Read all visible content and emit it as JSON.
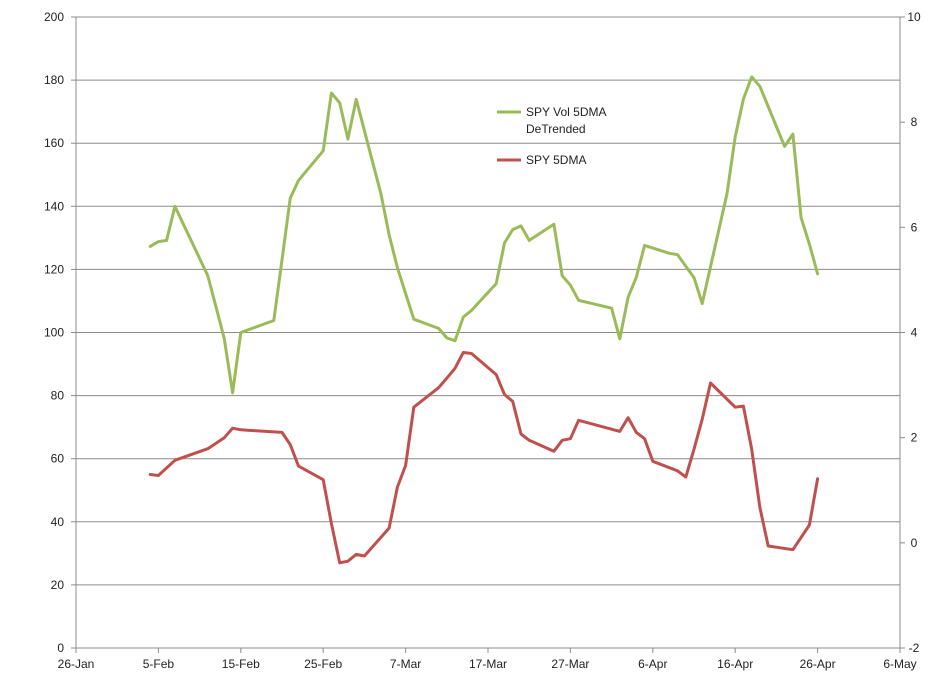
{
  "chart_data": {
    "type": "line",
    "title": "",
    "xlabel": "",
    "ylabel": "",
    "x_axis": {
      "min": "2013-01-26",
      "max": "2013-05-06",
      "ticks": [
        {
          "date": "2013-01-26",
          "label": "26-Jan"
        },
        {
          "date": "2013-02-05",
          "label": "5-Feb"
        },
        {
          "date": "2013-02-15",
          "label": "15-Feb"
        },
        {
          "date": "2013-02-25",
          "label": "25-Feb"
        },
        {
          "date": "2013-03-07",
          "label": "7-Mar"
        },
        {
          "date": "2013-03-17",
          "label": "17-Mar"
        },
        {
          "date": "2013-03-27",
          "label": "27-Mar"
        },
        {
          "date": "2013-04-06",
          "label": "6-Apr"
        },
        {
          "date": "2013-04-16",
          "label": "16-Apr"
        },
        {
          "date": "2013-04-26",
          "label": "26-Apr"
        },
        {
          "date": "2013-05-06",
          "label": "6-May"
        }
      ]
    },
    "y_axis_left": {
      "min": 0,
      "max": 200,
      "ticks": [
        "0",
        "20",
        "40",
        "60",
        "80",
        "100",
        "120",
        "140",
        "160",
        "180",
        "200"
      ]
    },
    "y_axis_right": {
      "min": -2,
      "max": 10,
      "ticks": [
        "-2",
        "0",
        "2",
        "4",
        "6",
        "8",
        "10"
      ]
    },
    "grid": "horizontal",
    "legend_position": "top-center",
    "series": [
      {
        "name": "SPY Vol 5DMA DeTrended",
        "name_lines": [
          "SPY Vol 5DMA",
          "DeTrended"
        ],
        "axis": "left",
        "color": "#9bbb59",
        "points": [
          [
            "2013-02-04",
            127.3
          ],
          [
            "2013-02-05",
            128.8
          ],
          [
            "2013-02-06",
            129.2
          ],
          [
            "2013-02-07",
            140.0
          ],
          [
            "2013-02-11",
            118.0
          ],
          [
            "2013-02-12",
            108.0
          ],
          [
            "2013-02-13",
            98.0
          ],
          [
            "2013-02-14",
            80.9
          ],
          [
            "2013-02-15",
            100.0
          ],
          [
            "2013-02-19",
            103.8
          ],
          [
            "2013-02-20",
            123.0
          ],
          [
            "2013-02-21",
            142.5
          ],
          [
            "2013-02-22",
            148.2
          ],
          [
            "2013-02-25",
            157.6
          ],
          [
            "2013-02-26",
            175.9
          ],
          [
            "2013-02-27",
            172.8
          ],
          [
            "2013-02-28",
            161.3
          ],
          [
            "2013-03-01",
            173.9
          ],
          [
            "2013-03-04",
            144.0
          ],
          [
            "2013-03-05",
            131.0
          ],
          [
            "2013-03-06",
            120.5
          ],
          [
            "2013-03-08",
            104.2
          ],
          [
            "2013-03-11",
            101.3
          ],
          [
            "2013-03-12",
            98.3
          ],
          [
            "2013-03-13",
            97.4
          ],
          [
            "2013-03-14",
            104.9
          ],
          [
            "2013-03-15",
            107.0
          ],
          [
            "2013-03-18",
            115.5
          ],
          [
            "2013-03-19",
            128.4
          ],
          [
            "2013-03-20",
            132.6
          ],
          [
            "2013-03-21",
            133.8
          ],
          [
            "2013-03-22",
            129.2
          ],
          [
            "2013-03-25",
            134.3
          ],
          [
            "2013-03-26",
            118.0
          ],
          [
            "2013-03-27",
            115.0
          ],
          [
            "2013-03-28",
            110.2
          ],
          [
            "2013-04-01",
            107.7
          ],
          [
            "2013-04-02",
            98.0
          ],
          [
            "2013-04-03",
            111.2
          ],
          [
            "2013-04-04",
            117.5
          ],
          [
            "2013-04-05",
            127.6
          ],
          [
            "2013-04-08",
            125.1
          ],
          [
            "2013-04-09",
            124.7
          ],
          [
            "2013-04-10",
            121.0
          ],
          [
            "2013-04-11",
            117.4
          ],
          [
            "2013-04-12",
            109.2
          ],
          [
            "2013-04-15",
            144.0
          ],
          [
            "2013-04-16",
            162.0
          ],
          [
            "2013-04-17",
            174.0
          ],
          [
            "2013-04-18",
            181.0
          ],
          [
            "2013-04-19",
            178.0
          ],
          [
            "2013-04-22",
            159.0
          ],
          [
            "2013-04-23",
            162.9
          ],
          [
            "2013-04-24",
            136.4
          ],
          [
            "2013-04-25",
            128.0
          ],
          [
            "2013-04-26",
            118.6
          ]
        ]
      },
      {
        "name": "SPY 5DMA",
        "name_lines": [
          "SPY 5DMA"
        ],
        "axis": "right",
        "color": "#c0504d",
        "points": [
          [
            "2013-02-04",
            1.3
          ],
          [
            "2013-02-05",
            1.28
          ],
          [
            "2013-02-07",
            1.57
          ],
          [
            "2013-02-11",
            1.79
          ],
          [
            "2013-02-13",
            2.0
          ],
          [
            "2013-02-14",
            2.18
          ],
          [
            "2013-02-15",
            2.15
          ],
          [
            "2013-02-20",
            2.1
          ],
          [
            "2013-02-21",
            1.87
          ],
          [
            "2013-02-22",
            1.46
          ],
          [
            "2013-02-25",
            1.2
          ],
          [
            "2013-02-26",
            0.37
          ],
          [
            "2013-02-27",
            -0.38
          ],
          [
            "2013-02-28",
            -0.35
          ],
          [
            "2013-03-01",
            -0.22
          ],
          [
            "2013-03-02",
            -0.25
          ],
          [
            "2013-03-05",
            0.28
          ],
          [
            "2013-03-06",
            1.06
          ],
          [
            "2013-03-07",
            1.47
          ],
          [
            "2013-03-08",
            2.58
          ],
          [
            "2013-03-11",
            2.95
          ],
          [
            "2013-03-12",
            3.13
          ],
          [
            "2013-03-13",
            3.32
          ],
          [
            "2013-03-14",
            3.62
          ],
          [
            "2013-03-15",
            3.6
          ],
          [
            "2013-03-18",
            3.2
          ],
          [
            "2013-03-19",
            2.82
          ],
          [
            "2013-03-20",
            2.69
          ],
          [
            "2013-03-21",
            2.07
          ],
          [
            "2013-03-22",
            1.95
          ],
          [
            "2013-03-25",
            1.74
          ],
          [
            "2013-03-26",
            1.95
          ],
          [
            "2013-03-27",
            1.98
          ],
          [
            "2013-03-28",
            2.33
          ],
          [
            "2013-04-02",
            2.12
          ],
          [
            "2013-04-03",
            2.38
          ],
          [
            "2013-04-04",
            2.1
          ],
          [
            "2013-04-05",
            1.98
          ],
          [
            "2013-04-06",
            1.55
          ],
          [
            "2013-04-09",
            1.37
          ],
          [
            "2013-04-10",
            1.25
          ],
          [
            "2013-04-11",
            1.78
          ],
          [
            "2013-04-12",
            2.35
          ],
          [
            "2013-04-13",
            3.04
          ],
          [
            "2013-04-16",
            2.58
          ],
          [
            "2013-04-17",
            2.6
          ],
          [
            "2013-04-18",
            1.78
          ],
          [
            "2013-04-19",
            0.67
          ],
          [
            "2013-04-20",
            -0.06
          ],
          [
            "2013-04-23",
            -0.13
          ],
          [
            "2013-04-25",
            0.34
          ],
          [
            "2013-04-26",
            1.22
          ]
        ]
      }
    ]
  }
}
